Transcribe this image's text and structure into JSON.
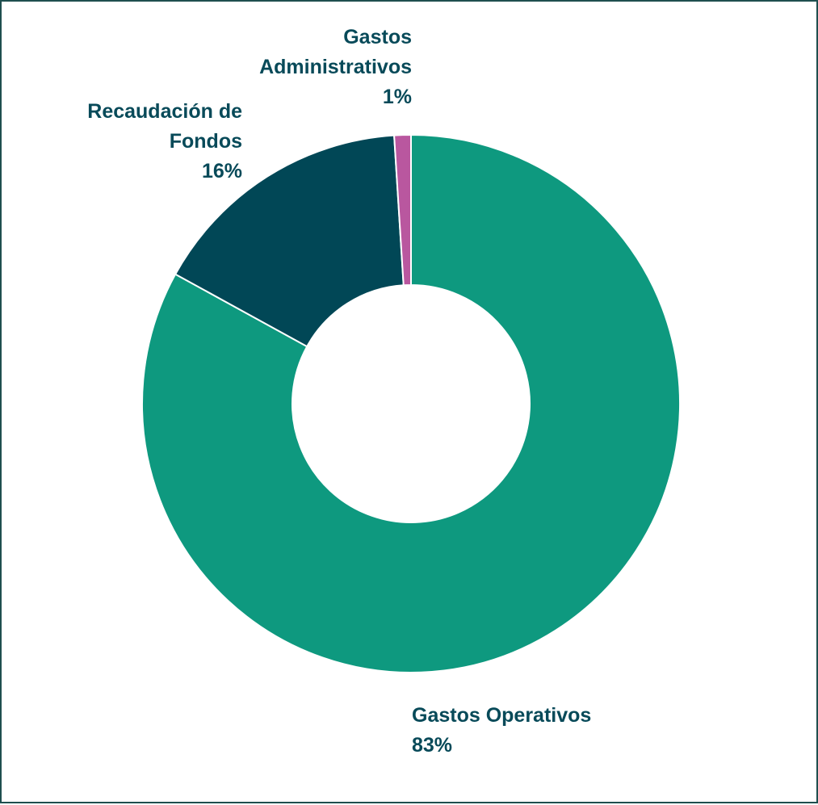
{
  "chart_data": {
    "type": "pie",
    "style": "donut",
    "categories": [
      "Gastos Operativos",
      "Recaudación de Fondos",
      "Gastos Administrativos"
    ],
    "values": [
      83,
      16,
      1
    ],
    "value_labels": [
      "83%",
      "16%",
      "1%"
    ],
    "label_lines": [
      [
        "Gastos Operativos"
      ],
      [
        "Recaudación de",
        "Fondos"
      ],
      [
        "Gastos",
        "Administrativos"
      ]
    ],
    "colors": [
      "#0e997f",
      "#014756",
      "#b9579f"
    ],
    "label_color": "#084a59",
    "border_color": "#1f4f4f",
    "legend": "none",
    "start": "top",
    "direction": "clockwise"
  }
}
